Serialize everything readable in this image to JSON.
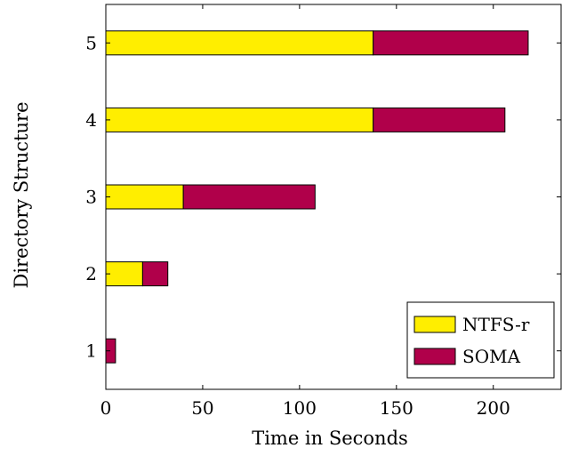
{
  "chart_data": {
    "type": "bar",
    "orientation": "horizontal",
    "stacked": true,
    "title": "",
    "xlabel": "Time in Seconds",
    "ylabel": "Directory Structure",
    "xlim": [
      0,
      235
    ],
    "x_ticks": [
      0,
      50,
      100,
      150,
      200
    ],
    "categories": [
      "1",
      "2",
      "3",
      "4",
      "5"
    ],
    "series": [
      {
        "name": "NTFS-r",
        "color": "#ffee00",
        "values": [
          0,
          19,
          40,
          138,
          138
        ]
      },
      {
        "name": "SOMA",
        "color": "#b0004a",
        "values": [
          5,
          13,
          68,
          68,
          80
        ]
      }
    ],
    "grid": false,
    "legend_position": "bottom-right"
  }
}
